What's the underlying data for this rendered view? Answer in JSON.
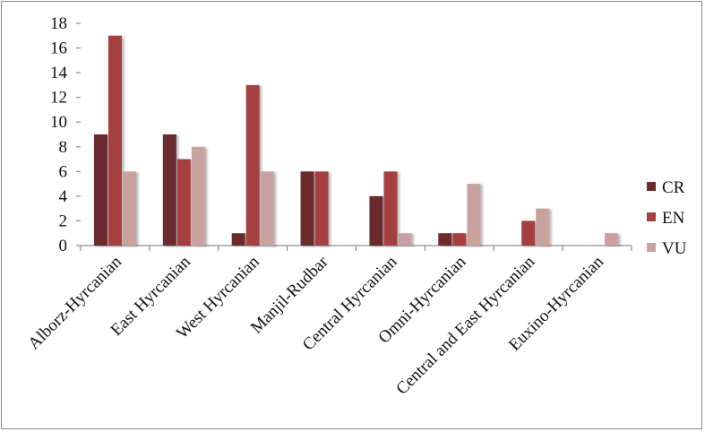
{
  "chart_data": {
    "type": "bar",
    "categories": [
      "Alborz-Hyrcanian",
      "East Hyrcanian",
      "West Hyrcanian",
      "Manjil-Rudbar",
      "Central Hyrcanian",
      "Omni-Hyrcanian",
      "Central and East Hyrcanian",
      "Euxino-Hyrcanian"
    ],
    "series": [
      {
        "name": "CR",
        "color": "#6b2a2e",
        "values": [
          9,
          9,
          1,
          6,
          4,
          1,
          0,
          0
        ]
      },
      {
        "name": "EN",
        "color": "#a5403f",
        "values": [
          17,
          7,
          13,
          6,
          6,
          1,
          2,
          0
        ]
      },
      {
        "name": "VU",
        "color": "#c9a2a0",
        "values": [
          6,
          8,
          6,
          0,
          1,
          5,
          3,
          1
        ]
      }
    ],
    "ylim": [
      0,
      18
    ],
    "yticks": [
      0,
      2,
      4,
      6,
      8,
      10,
      12,
      14,
      16,
      18
    ],
    "title": "",
    "xlabel": "",
    "ylabel": "",
    "grid": false,
    "legend_position": "right"
  }
}
